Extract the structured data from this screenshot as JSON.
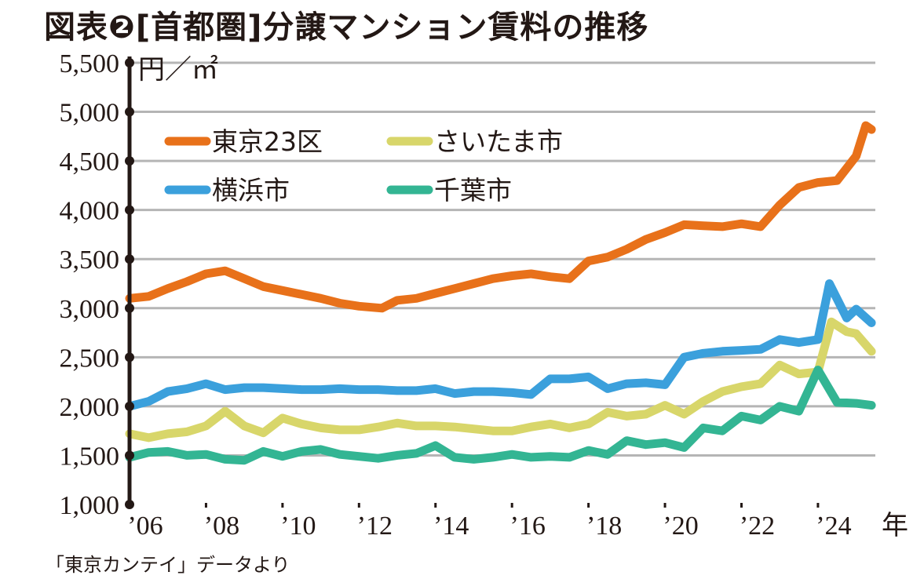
{
  "title": "図表❷[首都圏]分譲マンション賃料の推移",
  "source": "「東京カンテイ」データより",
  "chart_data": {
    "type": "line",
    "title": "図表❷[首都圏]分譲マンション賃料の推移",
    "ylabel": "円／㎡",
    "xlabel": "年",
    "ylim": [
      1000,
      5500
    ],
    "xlim": [
      2006,
      2025.5
    ],
    "grid": true,
    "legend_position": "top-left",
    "yticks": [
      "1,000",
      "1,500",
      "2,000",
      "2,500",
      "3,000",
      "3,500",
      "4,000",
      "4,500",
      "5,000",
      "5,500"
    ],
    "ytick_values": [
      1000,
      1500,
      2000,
      2500,
      3000,
      3500,
      4000,
      4500,
      5000,
      5500
    ],
    "xticks": [
      "’06",
      "’08",
      "’10",
      "’12",
      "’14",
      "’16",
      "’18",
      "’20",
      "’22",
      "’24"
    ],
    "xtick_values": [
      2006,
      2008,
      2010,
      2012,
      2014,
      2016,
      2018,
      2020,
      2022,
      2024
    ],
    "series": [
      {
        "name": "東京23区",
        "color": "#e8711a",
        "x": [
          2006,
          2006.5,
          2007,
          2007.5,
          2008,
          2008.5,
          2009,
          2009.5,
          2010,
          2010.5,
          2011,
          2011.5,
          2012,
          2012.6,
          2013,
          2013.5,
          2014,
          2014.5,
          2015,
          2015.5,
          2016,
          2016.5,
          2017,
          2017.5,
          2018,
          2018.5,
          2019,
          2019.5,
          2020,
          2020.5,
          2021,
          2021.5,
          2022,
          2022.5,
          2023,
          2023.5,
          2024,
          2024.5,
          2025,
          2025.25,
          2025.4
        ],
        "y": [
          3100,
          3120,
          3200,
          3270,
          3350,
          3380,
          3300,
          3220,
          3180,
          3140,
          3100,
          3050,
          3020,
          3000,
          3080,
          3100,
          3150,
          3200,
          3250,
          3300,
          3330,
          3350,
          3320,
          3300,
          3480,
          3520,
          3600,
          3700,
          3770,
          3850,
          3840,
          3830,
          3860,
          3830,
          4050,
          4230,
          4280,
          4300,
          4550,
          4860,
          4820
        ]
      },
      {
        "name": "さいたま市",
        "color": "#d8d66a",
        "x": [
          2006,
          2006.5,
          2007,
          2007.5,
          2008,
          2008.5,
          2009,
          2009.5,
          2010,
          2010.5,
          2011,
          2011.5,
          2012,
          2012.5,
          2013,
          2013.5,
          2014,
          2014.5,
          2015,
          2015.5,
          2016,
          2016.5,
          2017,
          2017.5,
          2018,
          2018.5,
          2019,
          2019.5,
          2020,
          2020.5,
          2021,
          2021.5,
          2022,
          2022.5,
          2023,
          2023.5,
          2024,
          2024.35,
          2024.75,
          2025,
          2025.4
        ],
        "y": [
          1720,
          1680,
          1720,
          1740,
          1800,
          1950,
          1800,
          1730,
          1880,
          1820,
          1780,
          1760,
          1760,
          1790,
          1830,
          1800,
          1800,
          1790,
          1770,
          1750,
          1750,
          1790,
          1820,
          1780,
          1820,
          1940,
          1900,
          1920,
          2010,
          1920,
          2050,
          2150,
          2200,
          2230,
          2420,
          2330,
          2350,
          2860,
          2760,
          2740,
          2560
        ]
      },
      {
        "name": "横浜市",
        "color": "#3ba0dc",
        "x": [
          2006,
          2006.5,
          2007,
          2007.5,
          2008,
          2008.5,
          2009,
          2009.5,
          2010,
          2010.5,
          2011,
          2011.5,
          2012,
          2012.5,
          2013,
          2013.5,
          2014,
          2014.5,
          2015,
          2015.5,
          2016,
          2016.5,
          2017,
          2017.5,
          2018,
          2018.5,
          2019,
          2019.5,
          2020,
          2020.5,
          2021,
          2021.5,
          2022,
          2022.5,
          2023,
          2023.5,
          2024,
          2024.3,
          2024.75,
          2025,
          2025.4
        ],
        "y": [
          2000,
          2050,
          2150,
          2180,
          2230,
          2170,
          2190,
          2190,
          2180,
          2170,
          2170,
          2180,
          2170,
          2170,
          2160,
          2160,
          2180,
          2130,
          2150,
          2150,
          2140,
          2120,
          2280,
          2280,
          2300,
          2180,
          2230,
          2240,
          2220,
          2500,
          2540,
          2560,
          2570,
          2580,
          2680,
          2650,
          2680,
          3250,
          2900,
          2990,
          2850
        ]
      },
      {
        "name": "千葉市",
        "color": "#33b593",
        "x": [
          2006,
          2006.5,
          2007,
          2007.5,
          2008,
          2008.5,
          2009,
          2009.5,
          2010,
          2010.5,
          2011,
          2011.5,
          2012,
          2012.5,
          2013,
          2013.5,
          2014,
          2014.5,
          2015,
          2015.5,
          2016,
          2016.5,
          2017,
          2017.5,
          2018,
          2018.5,
          2019,
          2019.5,
          2020,
          2020.5,
          2021,
          2021.5,
          2022,
          2022.5,
          2023,
          2023.5,
          2024,
          2024.5,
          2025,
          2025.4
        ],
        "y": [
          1480,
          1530,
          1540,
          1500,
          1510,
          1460,
          1450,
          1540,
          1490,
          1540,
          1560,
          1510,
          1490,
          1470,
          1500,
          1520,
          1600,
          1480,
          1460,
          1480,
          1510,
          1480,
          1490,
          1480,
          1550,
          1510,
          1650,
          1610,
          1630,
          1580,
          1780,
          1750,
          1900,
          1860,
          2000,
          1950,
          2370,
          2040,
          2030,
          2010
        ]
      }
    ]
  }
}
